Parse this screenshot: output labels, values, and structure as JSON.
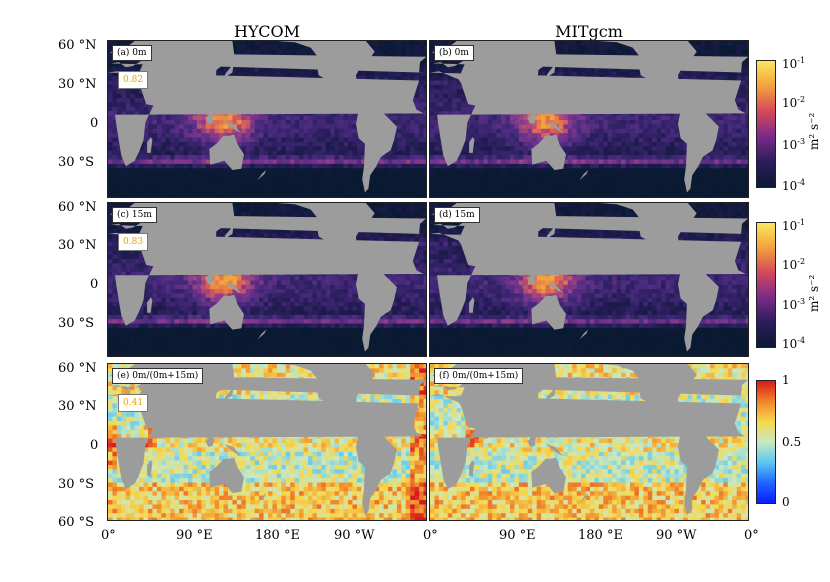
{
  "columns": {
    "left": "HYCOM",
    "right": "MITgcm"
  },
  "panels": [
    {
      "id": "a",
      "label": "(a) 0m",
      "value": "0.82",
      "type": "energy"
    },
    {
      "id": "b",
      "label": "(b) 0m",
      "value": "",
      "type": "energy"
    },
    {
      "id": "c",
      "label": "(c) 15m",
      "value": "0.83",
      "type": "energy"
    },
    {
      "id": "d",
      "label": "(d) 15m",
      "value": "",
      "type": "energy"
    },
    {
      "id": "e",
      "label": "(e) 0m/(0m+15m)",
      "value": "0.41",
      "type": "ratio"
    },
    {
      "id": "f",
      "label": "(f) 0m/(0m+15m)",
      "value": "",
      "type": "ratio"
    }
  ],
  "axes": {
    "y_ticks": [
      "60 °N",
      "30 °N",
      "0",
      "30 °S",
      "60 °S"
    ],
    "x_ticks": [
      "0°",
      "90 °E",
      "180 °E",
      "90 °W",
      "0°"
    ],
    "lat_range": [
      -60,
      60
    ],
    "lon_range": [
      0,
      360
    ]
  },
  "colorbars": [
    {
      "id": "energy-1",
      "ticks": [
        "10",
        "10",
        "10",
        "10"
      ],
      "exponents": [
        "-1",
        "-2",
        "-3",
        "-4"
      ],
      "unit": "m² s⁻²",
      "scale": "log",
      "range": [
        0.0001,
        0.1
      ]
    },
    {
      "id": "energy-2",
      "ticks": [
        "10",
        "10",
        "10",
        "10"
      ],
      "exponents": [
        "-1",
        "-2",
        "-3",
        "-4"
      ],
      "unit": "m² s⁻²",
      "scale": "log",
      "range": [
        0.0001,
        0.1
      ]
    },
    {
      "id": "ratio",
      "ticks": [
        "1",
        "0.5",
        "0"
      ],
      "unit": "",
      "scale": "linear",
      "range": [
        0,
        1
      ]
    }
  ],
  "colors": {
    "land": "#9c9c9c",
    "energy_low": "#0b1a33",
    "energy_mid": "#5a2b8a",
    "energy_high": "#f08a2a",
    "ratio_low": "#1a3cff",
    "ratio_mid": "#c9e8c0",
    "ratio_high": "#e8251a"
  }
}
